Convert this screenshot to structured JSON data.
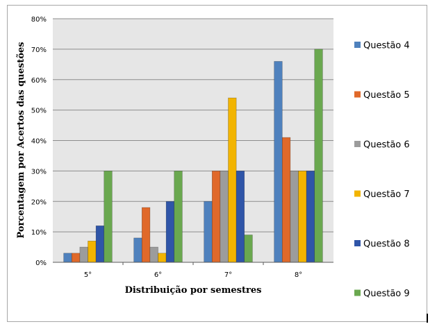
{
  "chart_data": {
    "type": "bar",
    "title": "",
    "xlabel": "Distribuição por semestres",
    "ylabel": "Porcentagem  por  Acertos das questões",
    "categories": [
      "5°",
      "6°",
      "7°",
      "8°"
    ],
    "ylim": [
      0,
      80
    ],
    "yticks": [
      0,
      10,
      20,
      30,
      40,
      50,
      60,
      70,
      80
    ],
    "ytick_suffix": "%",
    "grid": "horizontal",
    "plot_background": "#e6e6e6",
    "legend_position": "right",
    "series": [
      {
        "name": "Questão 4",
        "color": "#4f81bd",
        "values": [
          3,
          8,
          20,
          66
        ]
      },
      {
        "name": "Questão 5",
        "color": "#e0692a",
        "values": [
          3,
          18,
          30,
          41
        ]
      },
      {
        "name": "Questão 6",
        "color": "#9c9c9c",
        "values": [
          5,
          5,
          30,
          30
        ]
      },
      {
        "name": "Questão 7",
        "color": "#f2b400",
        "values": [
          7,
          3,
          54,
          30
        ]
      },
      {
        "name": "Questão 8",
        "color": "#2f55a8",
        "values": [
          12,
          20,
          30,
          30
        ]
      },
      {
        "name": "Questão 9",
        "color": "#6aa84f",
        "values": [
          30,
          30,
          9,
          70
        ]
      }
    ]
  }
}
